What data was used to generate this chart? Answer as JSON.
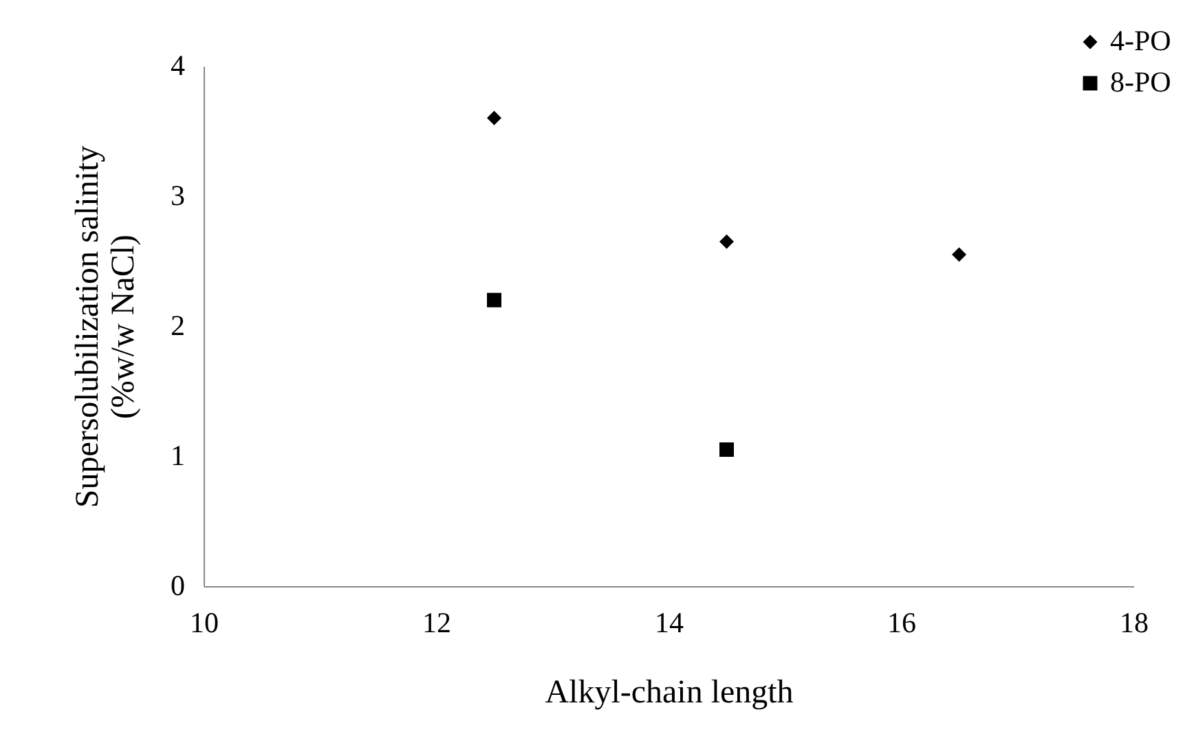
{
  "chart_data": {
    "type": "scatter",
    "xlabel": "Alkyl-chain length",
    "ylabel": "Supersolubilization salinity\n(%w/w NaCl)",
    "xlim": [
      10,
      18
    ],
    "xticks": [
      10,
      12,
      14,
      16,
      18
    ],
    "ylim": [
      0,
      4
    ],
    "yticks": [
      0,
      1,
      2,
      3,
      4
    ],
    "grid": false,
    "legend": "top right",
    "series": [
      {
        "name": "4-PO",
        "color": "#000000",
        "marker": "diamond",
        "x": [
          12.5,
          14.5,
          16.5
        ],
        "values": [
          3.6,
          2.65,
          2.55
        ]
      },
      {
        "name": "8-PO",
        "color": "#000000",
        "marker": "square",
        "x": [
          12.5,
          14.5
        ],
        "values": [
          2.2,
          1.05
        ]
      }
    ]
  }
}
